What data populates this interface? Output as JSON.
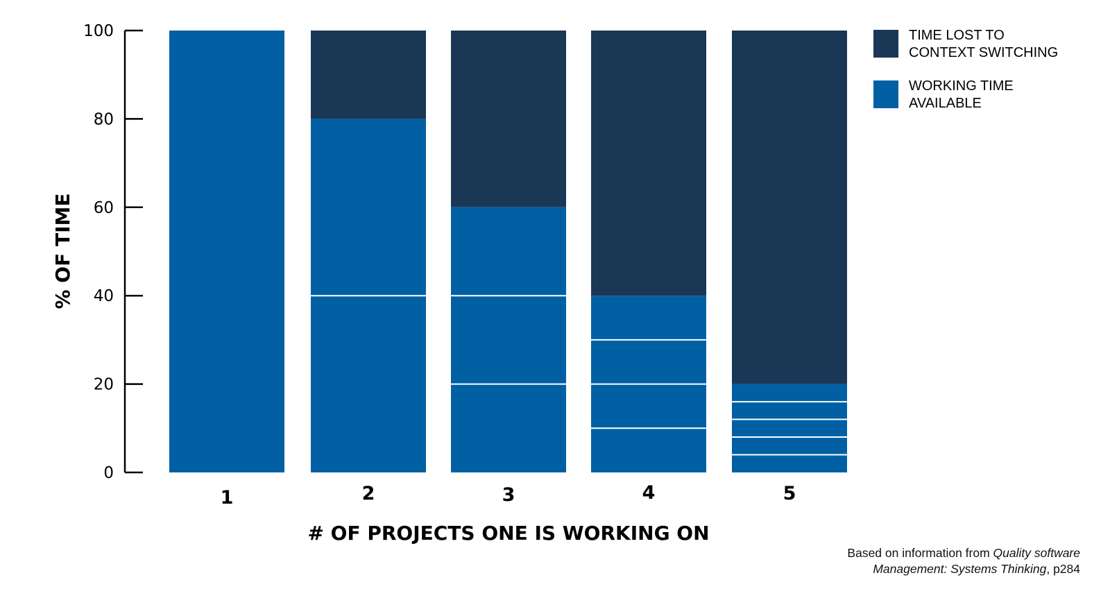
{
  "chart_data": {
    "type": "bar",
    "stacked": true,
    "categories": [
      "1",
      "2",
      "3",
      "4",
      "5"
    ],
    "series": [
      {
        "name": "WORKING TIME AVAILABLE",
        "color": "#0160a3",
        "values": [
          100,
          80,
          60,
          40,
          20
        ],
        "project_splits": [
          [
            100
          ],
          [
            40,
            40
          ],
          [
            20,
            20,
            20
          ],
          [
            10,
            10,
            10,
            10
          ],
          [
            4,
            4,
            4,
            4,
            4
          ]
        ]
      },
      {
        "name": "TIME LOST TO CONTEXT SWITCHING",
        "color": "#1a3756",
        "values": [
          0,
          20,
          40,
          60,
          80
        ]
      }
    ],
    "xlabel": "# OF PROJECTS ONE IS WORKING ON",
    "ylabel": "% OF TIME",
    "ylim": [
      0,
      100
    ],
    "yticks": [
      0,
      20,
      40,
      60,
      80,
      100
    ],
    "grid": false,
    "legend": {
      "placement": "right",
      "entries": [
        {
          "lines": [
            "TIME LOST TO",
            "CONTEXT SWITCHING"
          ],
          "color": "#1a3756"
        },
        {
          "lines": [
            "WORKING TIME",
            "AVAILABLE"
          ],
          "color": "#0160a3"
        }
      ]
    },
    "source": {
      "prefix": "Based on information from ",
      "title_line1": "Quality software",
      "title_line2": "Management: Systems Thinking",
      "suffix": ", p284"
    }
  }
}
